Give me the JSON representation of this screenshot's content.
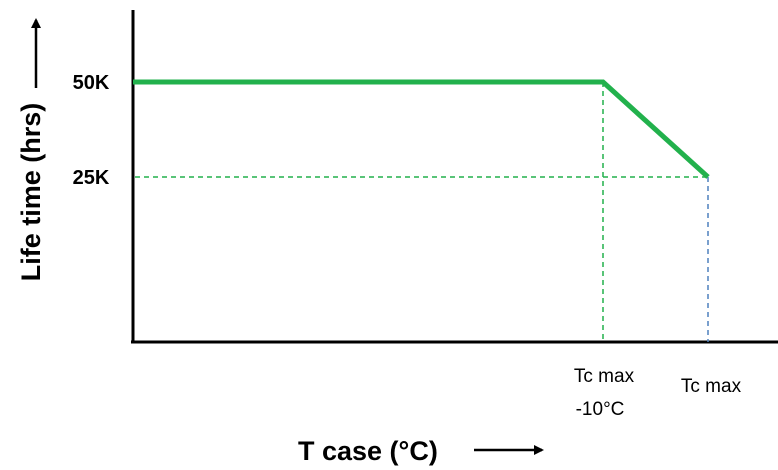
{
  "chart_data": {
    "type": "line",
    "title": "",
    "xlabel": "T case (°C)",
    "ylabel": "Life time (hrs)",
    "y_ticks": [
      {
        "label": "50K",
        "value": 50000
      },
      {
        "label": "25K",
        "value": 25000
      }
    ],
    "x_ticks": [
      {
        "label_lines": [
          "Tc max",
          "-10°C"
        ],
        "value": "Tc max -10°C"
      },
      {
        "label_lines": [
          "Tc max"
        ],
        "value": "Tc max"
      }
    ],
    "series": [
      {
        "points": [
          {
            "x": "start",
            "y": 50000
          },
          {
            "x": "Tc max -10°C",
            "y": 50000
          },
          {
            "x": "Tc max",
            "y": 25000
          }
        ]
      }
    ],
    "guides": [
      {
        "type": "horizontal",
        "y": 25000,
        "color": "#22b14c"
      },
      {
        "type": "vertical",
        "x": "Tc max -10°C",
        "color": "#22b14c"
      },
      {
        "type": "vertical",
        "x": "Tc max",
        "color": "#4f81bd"
      }
    ],
    "colors": {
      "series_line": "#22b14c",
      "axis": "#000000"
    },
    "grid": false,
    "legend": "none"
  }
}
